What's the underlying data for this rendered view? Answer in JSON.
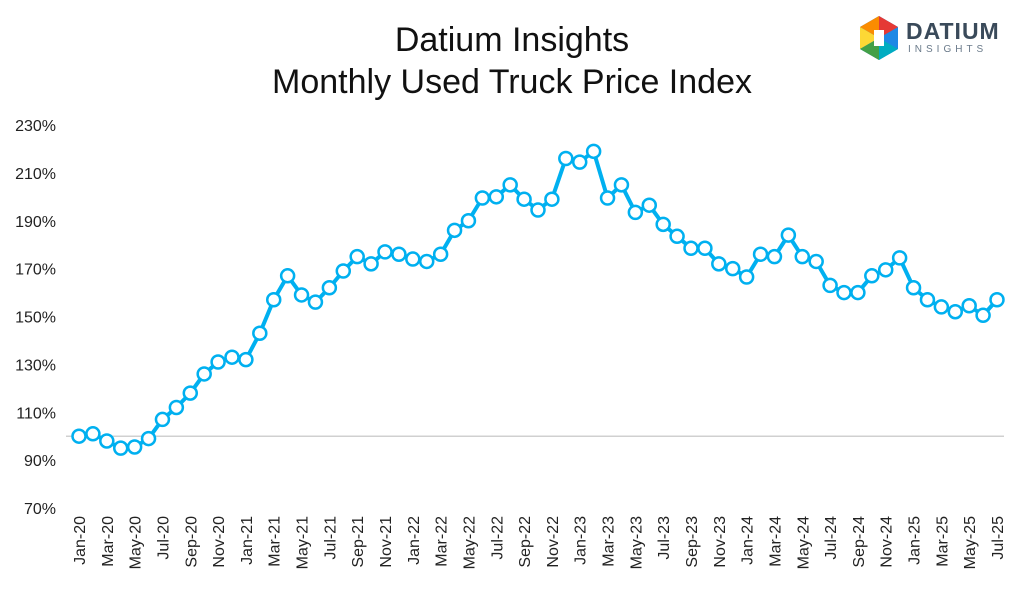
{
  "header": {
    "title_line1": "Datium Insights",
    "title_line2": "Monthly Used Truck Price Index"
  },
  "logo": {
    "name": "DATIUM",
    "sub": "INSIGHTS"
  },
  "chart_data": {
    "type": "line",
    "title": "Datium Insights Monthly Used Truck Price Index",
    "xlabel": "",
    "ylabel": "",
    "ylim": [
      70,
      230
    ],
    "yticks": [
      70,
      90,
      110,
      130,
      150,
      170,
      190,
      210,
      230
    ],
    "ytick_labels": [
      "70%",
      "90%",
      "110%",
      "130%",
      "150%",
      "170%",
      "190%",
      "210%",
      "230%"
    ],
    "reference_line": 100,
    "line_color": "#00b0f0",
    "x": [
      "Jan-20",
      "Feb-20",
      "Mar-20",
      "Apr-20",
      "May-20",
      "Jun-20",
      "Jul-20",
      "Aug-20",
      "Sep-20",
      "Oct-20",
      "Nov-20",
      "Dec-20",
      "Jan-21",
      "Feb-21",
      "Mar-21",
      "Apr-21",
      "May-21",
      "Jun-21",
      "Jul-21",
      "Aug-21",
      "Sep-21",
      "Oct-21",
      "Nov-21",
      "Dec-21",
      "Jan-22",
      "Feb-22",
      "Mar-22",
      "Apr-22",
      "May-22",
      "Jun-22",
      "Jul-22",
      "Aug-22",
      "Sep-22",
      "Oct-22",
      "Nov-22",
      "Dec-22",
      "Jan-23",
      "Feb-23",
      "Mar-23",
      "Apr-23",
      "May-23",
      "Jun-23",
      "Jul-23",
      "Aug-23",
      "Sep-23",
      "Oct-23",
      "Nov-23",
      "Dec-23",
      "Jan-24",
      "Feb-24",
      "Mar-24",
      "Apr-24",
      "May-24",
      "Jun-24",
      "Jul-24",
      "Aug-24",
      "Sep-24",
      "Oct-24",
      "Nov-24",
      "Dec-24",
      "Jan-25",
      "Feb-25",
      "Mar-25",
      "Apr-25",
      "May-25",
      "Jun-25",
      "Jul-25"
    ],
    "values": [
      100,
      101,
      98,
      95,
      95.5,
      99,
      107,
      112,
      118,
      126,
      131,
      133,
      132,
      143,
      157,
      167,
      159,
      156,
      162,
      169,
      175,
      172,
      177,
      176,
      174,
      173,
      176,
      186,
      190,
      199.5,
      200,
      205,
      199,
      194.5,
      199,
      216,
      214.5,
      219,
      199.5,
      205,
      193.5,
      196.5,
      188.5,
      183.5,
      178.5,
      178.5,
      172,
      170,
      166.5,
      176,
      175,
      184,
      175,
      173,
      163,
      160,
      160,
      167,
      169.5,
      174.5,
      162,
      157,
      154,
      152,
      154.5,
      150.5,
      157
    ],
    "xtick_labels": [
      "Jan-20",
      "Mar-20",
      "May-20",
      "Jul-20",
      "Sep-20",
      "Nov-20",
      "Jan-21",
      "Mar-21",
      "May-21",
      "Jul-21",
      "Sep-21",
      "Nov-21",
      "Jan-22",
      "Mar-22",
      "May-22",
      "Jul-22",
      "Sep-22",
      "Nov-22",
      "Jan-23",
      "Mar-23",
      "May-23",
      "Jul-23",
      "Sep-23",
      "Nov-23",
      "Jan-24",
      "Mar-24",
      "May-24",
      "Jul-24",
      "Sep-24",
      "Nov-24",
      "Jan-25",
      "Mar-25",
      "May-25",
      "Jul-25"
    ],
    "grid": false,
    "legend": "none"
  }
}
